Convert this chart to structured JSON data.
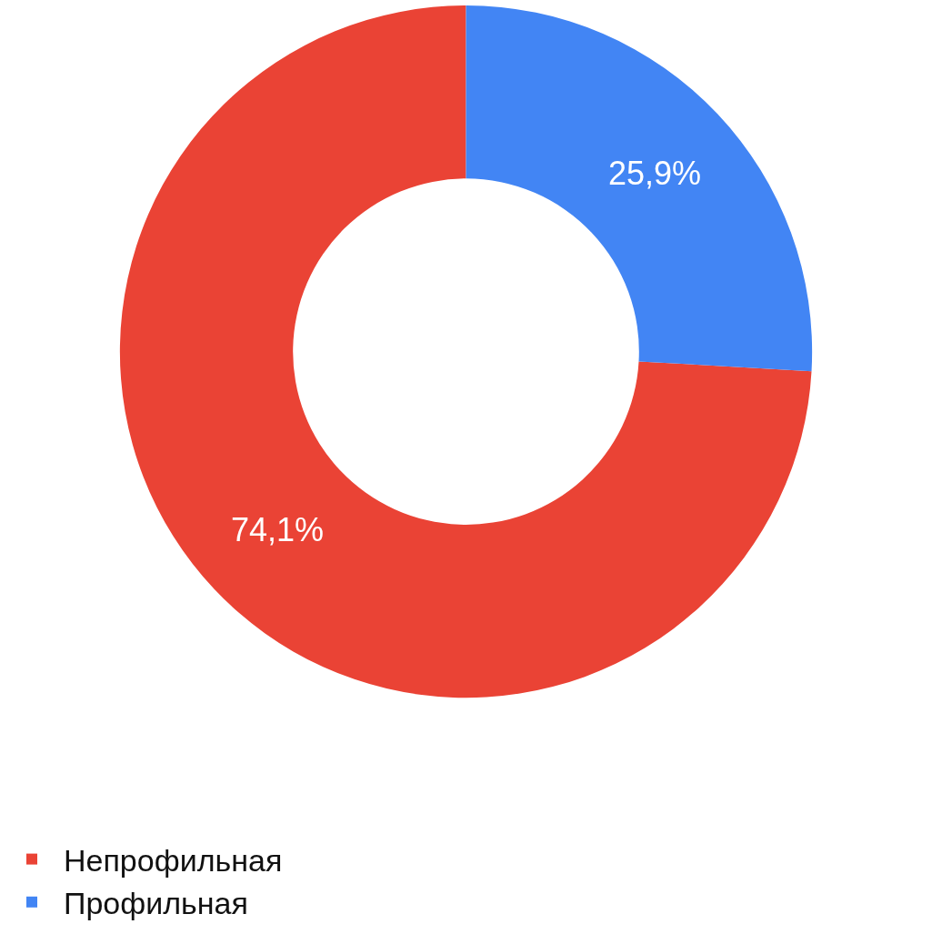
{
  "chart_data": {
    "type": "donut",
    "categories": [
      "Непрофильная",
      "Профильная"
    ],
    "values": [
      74.1,
      25.9
    ],
    "colors": [
      "#ea4335",
      "#4285f4"
    ],
    "value_labels": [
      "74,1%",
      "25,9%"
    ],
    "legend": "bottom left"
  }
}
